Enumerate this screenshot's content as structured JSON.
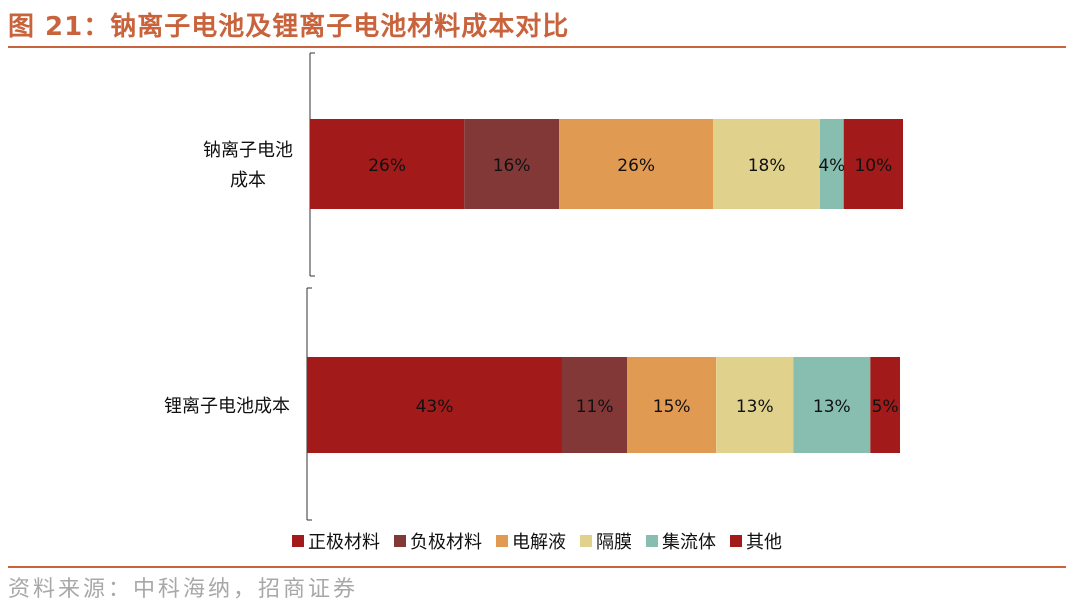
{
  "title": "图 21：钠离子电池及锂离子电池材料成本对比",
  "source": "资料来源：中科海纳，招商证券",
  "chart_data": {
    "type": "bar",
    "orientation": "horizontal",
    "stacked": true,
    "categories": [
      "钠离子电池成本",
      "锂离子电池成本"
    ],
    "category_display": [
      [
        "钠离子电池",
        "成本"
      ],
      [
        "锂离子电池成本"
      ]
    ],
    "series": [
      {
        "name": "正极材料",
        "color": "#a31a1a",
        "values": [
          26,
          43
        ],
        "labels": [
          "26%",
          "43%"
        ]
      },
      {
        "name": "负极材料",
        "color": "#833838",
        "values": [
          16,
          11
        ],
        "labels": [
          "16%",
          "11%"
        ]
      },
      {
        "name": "电解液",
        "color": "#e09a52",
        "values": [
          26,
          15
        ],
        "labels": [
          "26%",
          "15%"
        ]
      },
      {
        "name": "隔膜",
        "color": "#e0d28c",
        "values": [
          18,
          13
        ],
        "labels": [
          "18%",
          "13%"
        ]
      },
      {
        "name": "集流体",
        "color": "#88beb0",
        "values": [
          4,
          13
        ],
        "labels": [
          "4%",
          "13%"
        ]
      },
      {
        "name": "其他",
        "color": "#a31a1a",
        "values": [
          10,
          5
        ],
        "labels": [
          "10%",
          "5%"
        ]
      }
    ],
    "xlim": [
      0,
      100
    ],
    "legend": "bottom",
    "grid": false
  }
}
